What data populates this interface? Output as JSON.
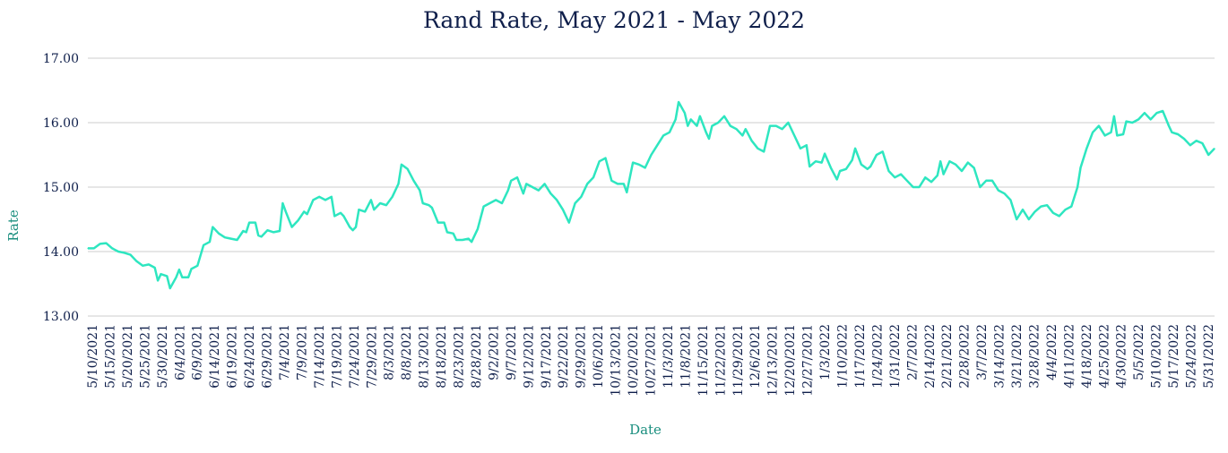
{
  "colors": {
    "line": "#2ee6c0",
    "text": "#0f1f4b",
    "axis_title": "#1b8f7f",
    "grid": "#cccccc"
  },
  "chart_data": {
    "type": "line",
    "title": "Rand Rate, May 2021 - May 2022",
    "xlabel": "Date",
    "ylabel": "Rate",
    "ylim": [
      13.0,
      17.0
    ],
    "grid": true,
    "legend": "none",
    "y_ticks": [
      "13.00",
      "14.00",
      "15.00",
      "16.00",
      "17.00"
    ],
    "x_tick_labels": [
      "5/10/2021",
      "5/15/2021",
      "5/20/2021",
      "5/25/2021",
      "5/30/2021",
      "6/4/2021",
      "6/9/2021",
      "6/14/2021",
      "6/19/2021",
      "6/24/2021",
      "6/29/2021",
      "7/4/2021",
      "7/9/2021",
      "7/14/2021",
      "7/19/2021",
      "7/24/2021",
      "7/29/2021",
      "8/3/2021",
      "8/8/2021",
      "8/13/2021",
      "8/18/2021",
      "8/23/2021",
      "8/28/2021",
      "9/2/2021",
      "9/7/2021",
      "9/12/2021",
      "9/17/2021",
      "9/22/2021",
      "9/29/2021",
      "10/6/2021",
      "10/13/2021",
      "10/20/2021",
      "10/27/2021",
      "11/3/2021",
      "11/8/2021",
      "11/15/2021",
      "11/22/2021",
      "11/29/2021",
      "12/6/2021",
      "12/13/2021",
      "12/20/2021",
      "12/27/2021",
      "1/3/2022",
      "1/10/2022",
      "1/17/2022",
      "1/24/2022",
      "1/31/2022",
      "2/7/2022",
      "2/14/2022",
      "2/21/2022",
      "2/28/2022",
      "3/7/2022",
      "3/14/2022",
      "3/21/2022",
      "3/28/2022",
      "4/4/2022",
      "4/11/2022",
      "4/18/2022",
      "4/25/2022",
      "4/30/2022",
      "5/5/2022",
      "5/10/2022",
      "5/17/2022",
      "5/24/2022",
      "5/31/2022"
    ],
    "series": [
      {
        "points": [
          [
            "2021-05-10",
            14.05
          ],
          [
            "2021-05-12",
            14.05
          ],
          [
            "2021-05-14",
            14.12
          ],
          [
            "2021-05-16",
            14.13
          ],
          [
            "2021-05-18",
            14.05
          ],
          [
            "2021-05-20",
            14.0
          ],
          [
            "2021-05-22",
            13.98
          ],
          [
            "2021-05-24",
            13.95
          ],
          [
            "2021-05-26",
            13.85
          ],
          [
            "2021-05-28",
            13.78
          ],
          [
            "2021-05-30",
            13.8
          ],
          [
            "2021-06-01",
            13.75
          ],
          [
            "2021-06-02",
            13.55
          ],
          [
            "2021-06-03",
            13.65
          ],
          [
            "2021-06-05",
            13.62
          ],
          [
            "2021-06-06",
            13.43
          ],
          [
            "2021-06-08",
            13.6
          ],
          [
            "2021-06-09",
            13.72
          ],
          [
            "2021-06-10",
            13.6
          ],
          [
            "2021-06-12",
            13.6
          ],
          [
            "2021-06-13",
            13.73
          ],
          [
            "2021-06-15",
            13.78
          ],
          [
            "2021-06-17",
            14.1
          ],
          [
            "2021-06-19",
            14.15
          ],
          [
            "2021-06-20",
            14.38
          ],
          [
            "2021-06-22",
            14.28
          ],
          [
            "2021-06-24",
            14.22
          ],
          [
            "2021-06-26",
            14.2
          ],
          [
            "2021-06-28",
            14.18
          ],
          [
            "2021-06-30",
            14.32
          ],
          [
            "2021-07-01",
            14.3
          ],
          [
            "2021-07-02",
            14.45
          ],
          [
            "2021-07-04",
            14.45
          ],
          [
            "2021-07-05",
            14.25
          ],
          [
            "2021-07-06",
            14.23
          ],
          [
            "2021-07-08",
            14.33
          ],
          [
            "2021-07-10",
            14.3
          ],
          [
            "2021-07-12",
            14.32
          ],
          [
            "2021-07-13",
            14.75
          ],
          [
            "2021-07-14",
            14.62
          ],
          [
            "2021-07-16",
            14.38
          ],
          [
            "2021-07-18",
            14.48
          ],
          [
            "2021-07-20",
            14.62
          ],
          [
            "2021-07-21",
            14.58
          ],
          [
            "2021-07-23",
            14.8
          ],
          [
            "2021-07-25",
            14.85
          ],
          [
            "2021-07-27",
            14.8
          ],
          [
            "2021-07-29",
            14.85
          ],
          [
            "2021-07-30",
            14.55
          ],
          [
            "2021-08-01",
            14.6
          ],
          [
            "2021-08-02",
            14.55
          ],
          [
            "2021-08-04",
            14.38
          ],
          [
            "2021-08-05",
            14.33
          ],
          [
            "2021-08-06",
            14.38
          ],
          [
            "2021-08-07",
            14.65
          ],
          [
            "2021-08-09",
            14.62
          ],
          [
            "2021-08-11",
            14.8
          ],
          [
            "2021-08-12",
            14.65
          ],
          [
            "2021-08-14",
            14.75
          ],
          [
            "2021-08-16",
            14.72
          ],
          [
            "2021-08-18",
            14.85
          ],
          [
            "2021-08-20",
            15.05
          ],
          [
            "2021-08-21",
            15.35
          ],
          [
            "2021-08-23",
            15.28
          ],
          [
            "2021-08-25",
            15.1
          ],
          [
            "2021-08-27",
            14.95
          ],
          [
            "2021-08-28",
            14.75
          ],
          [
            "2021-08-30",
            14.72
          ],
          [
            "2021-08-31",
            14.68
          ],
          [
            "2021-09-02",
            14.45
          ],
          [
            "2021-09-04",
            14.45
          ],
          [
            "2021-09-05",
            14.3
          ],
          [
            "2021-09-07",
            14.28
          ],
          [
            "2021-09-08",
            14.18
          ],
          [
            "2021-09-10",
            14.18
          ],
          [
            "2021-09-12",
            14.2
          ],
          [
            "2021-09-13",
            14.15
          ],
          [
            "2021-09-15",
            14.35
          ],
          [
            "2021-09-17",
            14.7
          ],
          [
            "2021-09-19",
            14.75
          ],
          [
            "2021-09-21",
            14.8
          ],
          [
            "2021-09-23",
            14.75
          ],
          [
            "2021-09-25",
            14.95
          ],
          [
            "2021-09-26",
            15.1
          ],
          [
            "2021-09-28",
            15.15
          ],
          [
            "2021-09-30",
            14.9
          ],
          [
            "2021-10-01",
            15.05
          ],
          [
            "2021-10-03",
            15.0
          ],
          [
            "2021-10-05",
            14.95
          ],
          [
            "2021-10-07",
            15.05
          ],
          [
            "2021-10-09",
            14.9
          ],
          [
            "2021-10-11",
            14.8
          ],
          [
            "2021-10-13",
            14.65
          ],
          [
            "2021-10-15",
            14.45
          ],
          [
            "2021-10-17",
            14.75
          ],
          [
            "2021-10-19",
            14.85
          ],
          [
            "2021-10-21",
            15.05
          ],
          [
            "2021-10-23",
            15.15
          ],
          [
            "2021-10-25",
            15.4
          ],
          [
            "2021-10-27",
            15.45
          ],
          [
            "2021-10-29",
            15.1
          ],
          [
            "2021-10-31",
            15.05
          ],
          [
            "2021-11-02",
            15.05
          ],
          [
            "2021-11-03",
            14.92
          ],
          [
            "2021-11-05",
            15.38
          ],
          [
            "2021-11-07",
            15.35
          ],
          [
            "2021-11-09",
            15.3
          ],
          [
            "2021-11-11",
            15.5
          ],
          [
            "2021-11-13",
            15.65
          ],
          [
            "2021-11-15",
            15.8
          ],
          [
            "2021-11-17",
            15.85
          ],
          [
            "2021-11-19",
            16.05
          ],
          [
            "2021-11-20",
            16.32
          ],
          [
            "2021-11-22",
            16.15
          ],
          [
            "2021-11-23",
            15.95
          ],
          [
            "2021-11-24",
            16.05
          ],
          [
            "2021-11-26",
            15.95
          ],
          [
            "2021-11-27",
            16.1
          ],
          [
            "2021-11-29",
            15.85
          ],
          [
            "2021-11-30",
            15.75
          ],
          [
            "2021-12-01",
            15.95
          ],
          [
            "2021-12-03",
            16.0
          ],
          [
            "2021-12-05",
            16.1
          ],
          [
            "2021-12-07",
            15.95
          ],
          [
            "2021-12-09",
            15.9
          ],
          [
            "2021-12-11",
            15.8
          ],
          [
            "2021-12-12",
            15.9
          ],
          [
            "2021-12-14",
            15.72
          ],
          [
            "2021-12-16",
            15.6
          ],
          [
            "2021-12-18",
            15.55
          ],
          [
            "2021-12-20",
            15.95
          ],
          [
            "2021-12-22",
            15.95
          ],
          [
            "2021-12-24",
            15.9
          ],
          [
            "2021-12-26",
            16.0
          ],
          [
            "2021-12-28",
            15.8
          ],
          [
            "2021-12-30",
            15.6
          ],
          [
            "2022-01-01",
            15.65
          ],
          [
            "2022-01-02",
            15.32
          ],
          [
            "2022-01-04",
            15.4
          ],
          [
            "2022-01-06",
            15.38
          ],
          [
            "2022-01-07",
            15.52
          ],
          [
            "2022-01-09",
            15.3
          ],
          [
            "2022-01-11",
            15.12
          ],
          [
            "2022-01-12",
            15.25
          ],
          [
            "2022-01-14",
            15.28
          ],
          [
            "2022-01-16",
            15.42
          ],
          [
            "2022-01-17",
            15.6
          ],
          [
            "2022-01-19",
            15.35
          ],
          [
            "2022-01-21",
            15.28
          ],
          [
            "2022-01-22",
            15.32
          ],
          [
            "2022-01-24",
            15.5
          ],
          [
            "2022-01-26",
            15.55
          ],
          [
            "2022-01-28",
            15.25
          ],
          [
            "2022-01-30",
            15.15
          ],
          [
            "2022-02-01",
            15.2
          ],
          [
            "2022-02-03",
            15.1
          ],
          [
            "2022-02-05",
            15.0
          ],
          [
            "2022-02-07",
            15.0
          ],
          [
            "2022-02-09",
            15.15
          ],
          [
            "2022-02-11",
            15.08
          ],
          [
            "2022-02-13",
            15.18
          ],
          [
            "2022-02-14",
            15.4
          ],
          [
            "2022-02-15",
            15.2
          ],
          [
            "2022-02-17",
            15.4
          ],
          [
            "2022-02-19",
            15.35
          ],
          [
            "2022-02-21",
            15.25
          ],
          [
            "2022-02-23",
            15.38
          ],
          [
            "2022-02-25",
            15.3
          ],
          [
            "2022-02-27",
            15.0
          ],
          [
            "2022-03-01",
            15.1
          ],
          [
            "2022-03-03",
            15.1
          ],
          [
            "2022-03-05",
            14.95
          ],
          [
            "2022-03-07",
            14.9
          ],
          [
            "2022-03-09",
            14.8
          ],
          [
            "2022-03-11",
            14.5
          ],
          [
            "2022-03-13",
            14.65
          ],
          [
            "2022-03-15",
            14.5
          ],
          [
            "2022-03-17",
            14.62
          ],
          [
            "2022-03-19",
            14.7
          ],
          [
            "2022-03-21",
            14.72
          ],
          [
            "2022-03-23",
            14.6
          ],
          [
            "2022-03-25",
            14.55
          ],
          [
            "2022-03-27",
            14.65
          ],
          [
            "2022-03-29",
            14.7
          ],
          [
            "2022-03-31",
            15.0
          ],
          [
            "2022-04-01",
            15.3
          ],
          [
            "2022-04-03",
            15.6
          ],
          [
            "2022-04-05",
            15.85
          ],
          [
            "2022-04-07",
            15.95
          ],
          [
            "2022-04-09",
            15.8
          ],
          [
            "2022-04-11",
            15.85
          ],
          [
            "2022-04-12",
            16.1
          ],
          [
            "2022-04-13",
            15.8
          ],
          [
            "2022-04-15",
            15.82
          ],
          [
            "2022-04-16",
            16.02
          ],
          [
            "2022-04-18",
            16.0
          ],
          [
            "2022-04-20",
            16.05
          ],
          [
            "2022-04-22",
            16.15
          ],
          [
            "2022-04-24",
            16.05
          ],
          [
            "2022-04-26",
            16.15
          ],
          [
            "2022-04-28",
            16.18
          ],
          [
            "2022-04-30",
            15.95
          ],
          [
            "2022-05-01",
            15.85
          ],
          [
            "2022-05-03",
            15.82
          ],
          [
            "2022-05-05",
            15.75
          ],
          [
            "2022-05-07",
            15.65
          ],
          [
            "2022-05-09",
            15.72
          ],
          [
            "2022-05-11",
            15.68
          ],
          [
            "2022-05-13",
            15.5
          ],
          [
            "2022-05-15",
            15.6
          ]
        ]
      }
    ]
  }
}
